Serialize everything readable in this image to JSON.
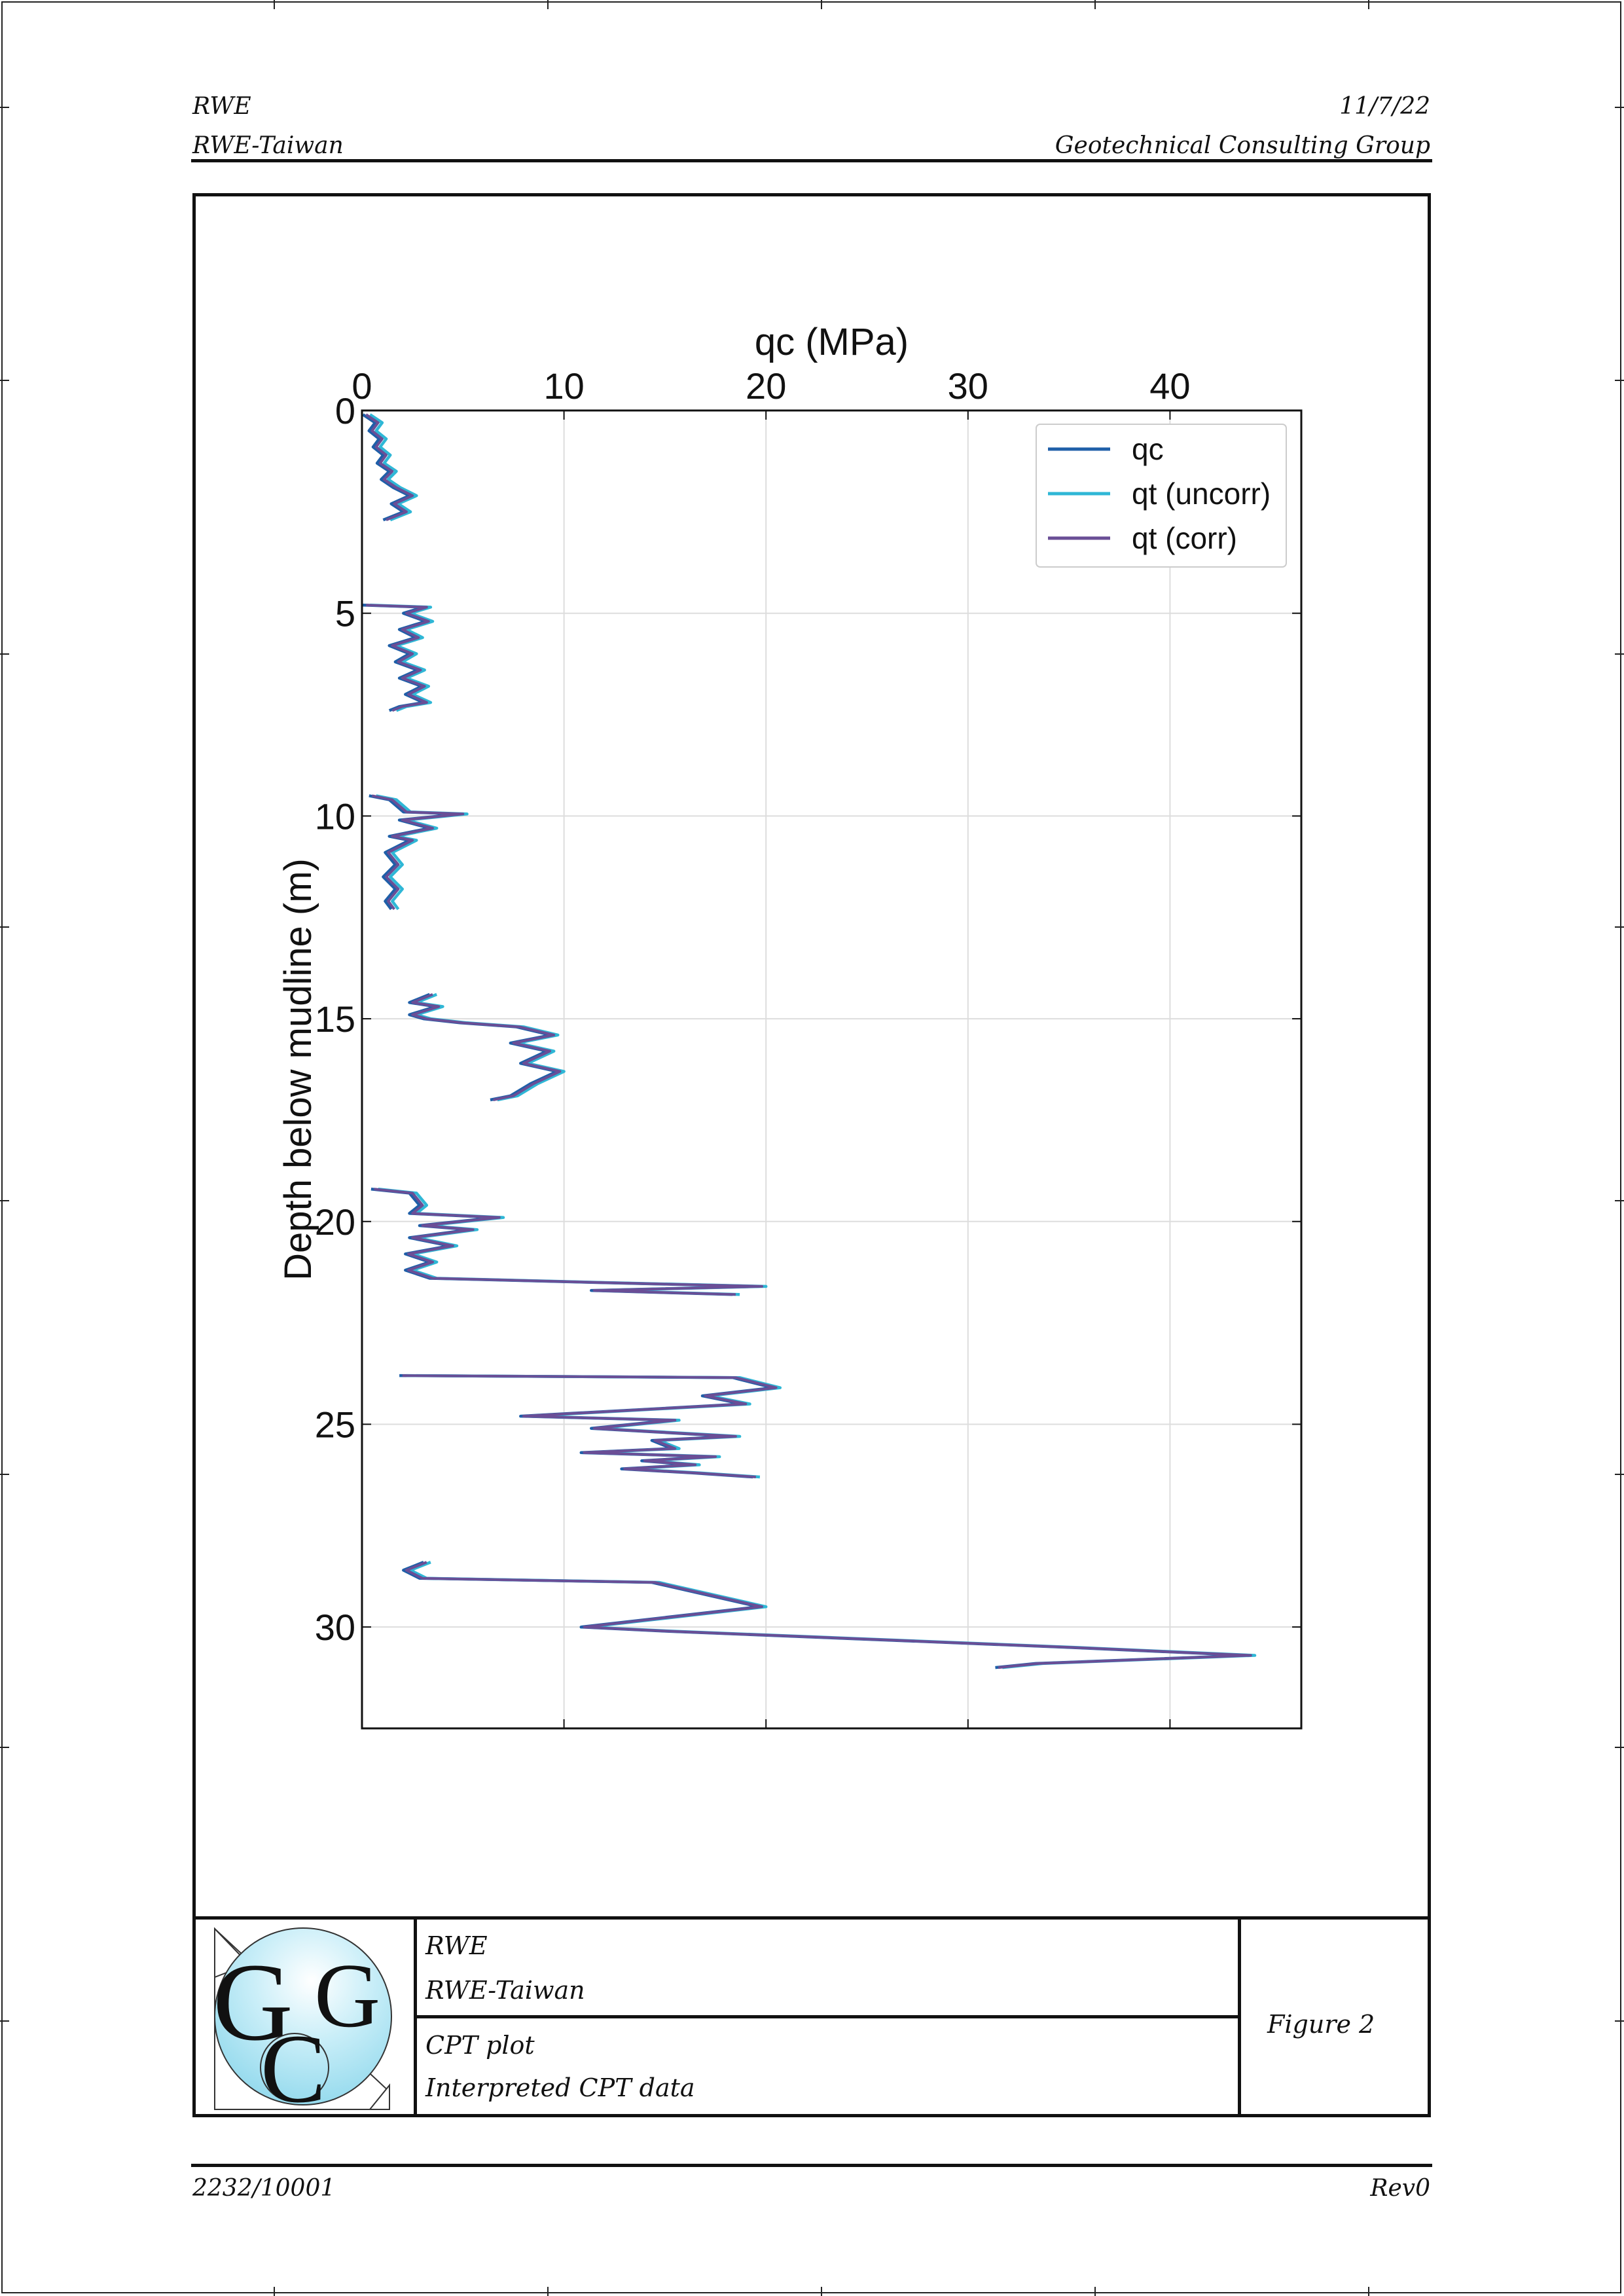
{
  "header": {
    "client": "RWE",
    "project": "RWE-Taiwan",
    "date": "11/7/22",
    "company": "Geotechnical Consulting Group"
  },
  "title_block": {
    "client": "RWE",
    "project": "RWE-Taiwan",
    "title": "CPT plot",
    "subtitle": "Interpreted CPT data",
    "figure": "Figure 2",
    "logo_letters": "GCG"
  },
  "footer": {
    "job_number": "2232/10001",
    "revision": "Rev0"
  },
  "colors": {
    "qc": "#1f5fa8",
    "qt_uncorr": "#2fb7d6",
    "qt_corr": "#6a4e96",
    "grid": "#dddddd",
    "logo": "#a8e2f2"
  },
  "chart_data": {
    "type": "line",
    "orientation": "depth-profile",
    "xlabel": "qc (MPa)",
    "ylabel": "Depth below mudline (m)",
    "xaxis_position": "top",
    "xlim": [
      0,
      46.5
    ],
    "ylim": [
      32.5,
      0
    ],
    "xticks": [
      0,
      10,
      20,
      30,
      40
    ],
    "yticks": [
      0,
      5,
      10,
      15,
      20,
      25,
      30
    ],
    "grid": true,
    "legend": "top-right",
    "series": [
      {
        "name": "qc",
        "color": "#1f5fa8",
        "x_offset": -0.15
      },
      {
        "name": "qt (uncorr)",
        "color": "#2fb7d6",
        "x_offset": 0.2
      },
      {
        "name": "qt (corr)",
        "color": "#6a4e96",
        "x_offset": 0
      }
    ],
    "profile_segments": [
      [
        [
          0.2,
          0.1
        ],
        [
          0.8,
          0.3
        ],
        [
          0.5,
          0.5
        ],
        [
          1.0,
          0.7
        ],
        [
          0.7,
          0.9
        ],
        [
          1.2,
          1.1
        ],
        [
          0.9,
          1.3
        ],
        [
          1.5,
          1.5
        ],
        [
          1.1,
          1.7
        ],
        [
          1.7,
          1.9
        ],
        [
          2.5,
          2.1
        ],
        [
          1.6,
          2.3
        ],
        [
          2.2,
          2.5
        ],
        [
          1.2,
          2.7
        ]
      ],
      [
        [
          0.2,
          4.8
        ],
        [
          3.2,
          4.85
        ],
        [
          2.2,
          5.0
        ],
        [
          3.3,
          5.2
        ],
        [
          2.0,
          5.4
        ],
        [
          2.8,
          5.6
        ],
        [
          1.5,
          5.8
        ],
        [
          2.5,
          6.0
        ],
        [
          1.8,
          6.2
        ],
        [
          2.9,
          6.4
        ],
        [
          2.0,
          6.6
        ],
        [
          3.1,
          6.8
        ],
        [
          2.3,
          7.0
        ],
        [
          3.2,
          7.2
        ],
        [
          2.0,
          7.3
        ],
        [
          1.5,
          7.4
        ]
      ],
      [
        [
          0.5,
          9.5
        ],
        [
          1.5,
          9.6
        ],
        [
          2.2,
          9.9
        ],
        [
          5.0,
          9.95
        ],
        [
          2.0,
          10.1
        ],
        [
          3.5,
          10.3
        ],
        [
          1.5,
          10.5
        ],
        [
          2.5,
          10.6
        ],
        [
          1.3,
          10.9
        ],
        [
          1.8,
          11.2
        ],
        [
          1.2,
          11.5
        ],
        [
          1.8,
          11.8
        ],
        [
          1.3,
          12.1
        ],
        [
          1.6,
          12.3
        ]
      ],
      [
        [
          3.5,
          14.4
        ],
        [
          2.5,
          14.6
        ],
        [
          3.8,
          14.7
        ],
        [
          2.5,
          14.9
        ],
        [
          3.2,
          15.0
        ],
        [
          5.0,
          15.1
        ],
        [
          7.8,
          15.2
        ],
        [
          9.5,
          15.4
        ],
        [
          7.5,
          15.6
        ],
        [
          9.3,
          15.8
        ],
        [
          8.0,
          16.1
        ],
        [
          9.8,
          16.3
        ],
        [
          8.5,
          16.6
        ],
        [
          7.5,
          16.9
        ],
        [
          6.5,
          17.0
        ]
      ],
      [
        [
          0.6,
          19.2
        ],
        [
          2.5,
          19.3
        ],
        [
          3.0,
          19.6
        ],
        [
          2.5,
          19.8
        ],
        [
          6.8,
          19.9
        ],
        [
          3.0,
          20.1
        ],
        [
          5.5,
          20.2
        ],
        [
          2.5,
          20.4
        ],
        [
          4.5,
          20.6
        ],
        [
          2.3,
          20.8
        ],
        [
          3.5,
          21.0
        ],
        [
          2.3,
          21.2
        ],
        [
          3.5,
          21.4
        ],
        [
          11.5,
          21.5
        ],
        [
          19.8,
          21.6
        ],
        [
          11.5,
          21.7
        ],
        [
          18.5,
          21.8
        ]
      ],
      [
        [
          2.0,
          23.8
        ],
        [
          18.5,
          23.85
        ],
        [
          20.5,
          24.1
        ],
        [
          17.0,
          24.3
        ],
        [
          19.0,
          24.5
        ],
        [
          8.0,
          24.8
        ],
        [
          15.5,
          24.9
        ],
        [
          11.5,
          25.1
        ],
        [
          18.5,
          25.3
        ],
        [
          14.5,
          25.4
        ],
        [
          15.5,
          25.6
        ],
        [
          11.0,
          25.7
        ],
        [
          17.5,
          25.8
        ],
        [
          14.0,
          25.9
        ],
        [
          16.5,
          26.0
        ],
        [
          13.0,
          26.1
        ],
        [
          16.5,
          26.2
        ],
        [
          19.5,
          26.3
        ]
      ],
      [
        [
          3.2,
          28.4
        ],
        [
          2.2,
          28.6
        ],
        [
          3.0,
          28.8
        ],
        [
          14.5,
          28.9
        ],
        [
          19.8,
          29.5
        ],
        [
          11.0,
          30.0
        ],
        [
          15.0,
          30.1
        ],
        [
          35.0,
          30.5
        ],
        [
          44.0,
          30.7
        ],
        [
          33.5,
          30.9
        ],
        [
          31.5,
          31.0
        ]
      ]
    ]
  }
}
